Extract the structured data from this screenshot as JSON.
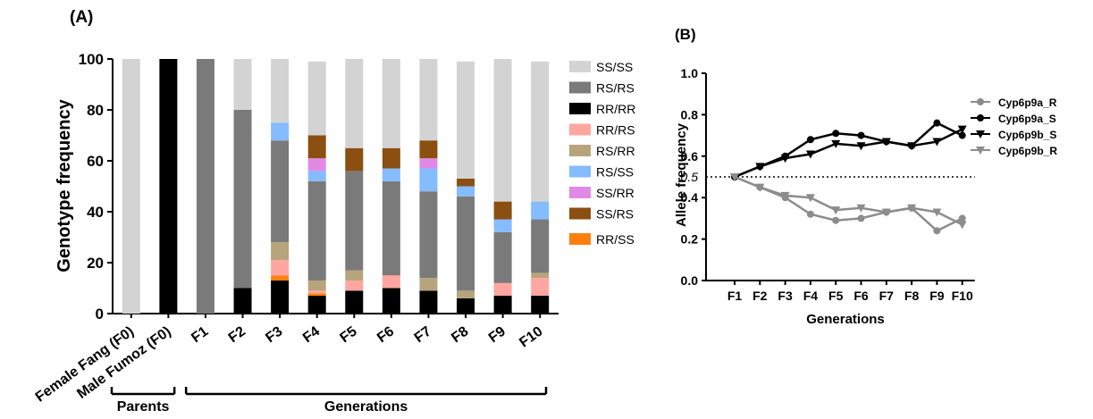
{
  "chart_data": [
    {
      "panel_label": "(A)",
      "type": "bar",
      "stacked": true,
      "ylabel": "Genotype frequency",
      "ylim": [
        0,
        100
      ],
      "yticks": [
        0,
        20,
        40,
        60,
        80,
        100
      ],
      "categories": [
        "Female Fang (F0)",
        "Male Fumoz (F0)",
        "F1",
        "F2",
        "F3",
        "F4",
        "F5",
        "F6",
        "F7",
        "F8",
        "F9",
        "F10"
      ],
      "group_labels": [
        {
          "label": "Parents",
          "from": 0,
          "to": 1
        },
        {
          "label": "Generations",
          "from": 2,
          "to": 11
        }
      ],
      "legend_position": "right",
      "series": [
        {
          "name": "RR/RR",
          "color": "#000000",
          "values": [
            0,
            100,
            0,
            10,
            13,
            7,
            9,
            10,
            9,
            6,
            7,
            7
          ]
        },
        {
          "name": "RR/SS",
          "color": "#ff7f0e",
          "values": [
            0,
            0,
            0,
            0,
            2,
            1,
            0,
            0,
            0,
            0,
            0,
            0
          ]
        },
        {
          "name": "RR/RS",
          "color": "#ffa6a0",
          "values": [
            0,
            0,
            0,
            0,
            6,
            1,
            4,
            5,
            0,
            0,
            5,
            7
          ]
        },
        {
          "name": "RS/RR",
          "color": "#b8a47c",
          "values": [
            0,
            0,
            0,
            0,
            7,
            4,
            4,
            0,
            5,
            3,
            0,
            2
          ]
        },
        {
          "name": "RS/RS",
          "color": "#7a7a7a",
          "values": [
            0,
            0,
            100,
            70,
            40,
            39,
            39,
            37,
            34,
            37,
            20,
            21
          ]
        },
        {
          "name": "RS/SS",
          "color": "#85bbff",
          "values": [
            0,
            0,
            0,
            0,
            7,
            4,
            0,
            5,
            9,
            4,
            5,
            7
          ]
        },
        {
          "name": "SS/RR",
          "color": "#e08ae6",
          "values": [
            0,
            0,
            0,
            0,
            0,
            5,
            0,
            0,
            4,
            0,
            0,
            0
          ]
        },
        {
          "name": "SS/RS",
          "color": "#8b4f12",
          "values": [
            0,
            0,
            0,
            0,
            0,
            9,
            9,
            8,
            7,
            3,
            7,
            0
          ]
        },
        {
          "name": "SS/SS",
          "color": "#d3d3d3",
          "values": [
            100,
            0,
            0,
            20,
            25,
            29,
            35,
            35,
            32,
            46,
            56,
            55
          ]
        }
      ],
      "legend_order": [
        "SS/SS",
        "RS/RS",
        "RR/RR",
        "RR/RS",
        "RS/RR",
        "RS/SS",
        "SS/RR",
        "SS/RS",
        "RR/SS"
      ]
    },
    {
      "panel_label": "(B)",
      "type": "line",
      "ylabel": "Allele frequency",
      "xlabel": "Generations",
      "ylim": [
        0,
        1
      ],
      "yticks": [
        "0.0",
        "0.2",
        "0.4",
        "0.6",
        "0.8",
        "1.0"
      ],
      "reference_line": {
        "y": 0.5,
        "label": "0.5",
        "style": "dotted"
      },
      "categories": [
        "F1",
        "F2",
        "F3",
        "F4",
        "F5",
        "F6",
        "F7",
        "F8",
        "F9",
        "F10"
      ],
      "legend_position": "right",
      "series": [
        {
          "name": "Cyp6p9a_R",
          "color": "#8c8c8c",
          "marker": "circle",
          "values": [
            0.5,
            0.45,
            0.4,
            0.32,
            0.29,
            0.3,
            0.33,
            0.35,
            0.24,
            0.3
          ]
        },
        {
          "name": "Cyp6p9a_S",
          "color": "#000000",
          "marker": "circle",
          "values": [
            0.5,
            0.55,
            0.6,
            0.68,
            0.71,
            0.7,
            0.67,
            0.65,
            0.76,
            0.7
          ]
        },
        {
          "name": "Cyp6p9b_S",
          "color": "#000000",
          "marker": "triangle-down",
          "values": [
            0.5,
            0.55,
            0.59,
            0.61,
            0.66,
            0.65,
            0.67,
            0.65,
            0.67,
            0.73
          ]
        },
        {
          "name": "Cyp6p9b_R",
          "color": "#8c8c8c",
          "marker": "triangle-down",
          "values": [
            0.5,
            0.45,
            0.41,
            0.4,
            0.34,
            0.35,
            0.33,
            0.35,
            0.33,
            0.27
          ]
        }
      ]
    }
  ]
}
